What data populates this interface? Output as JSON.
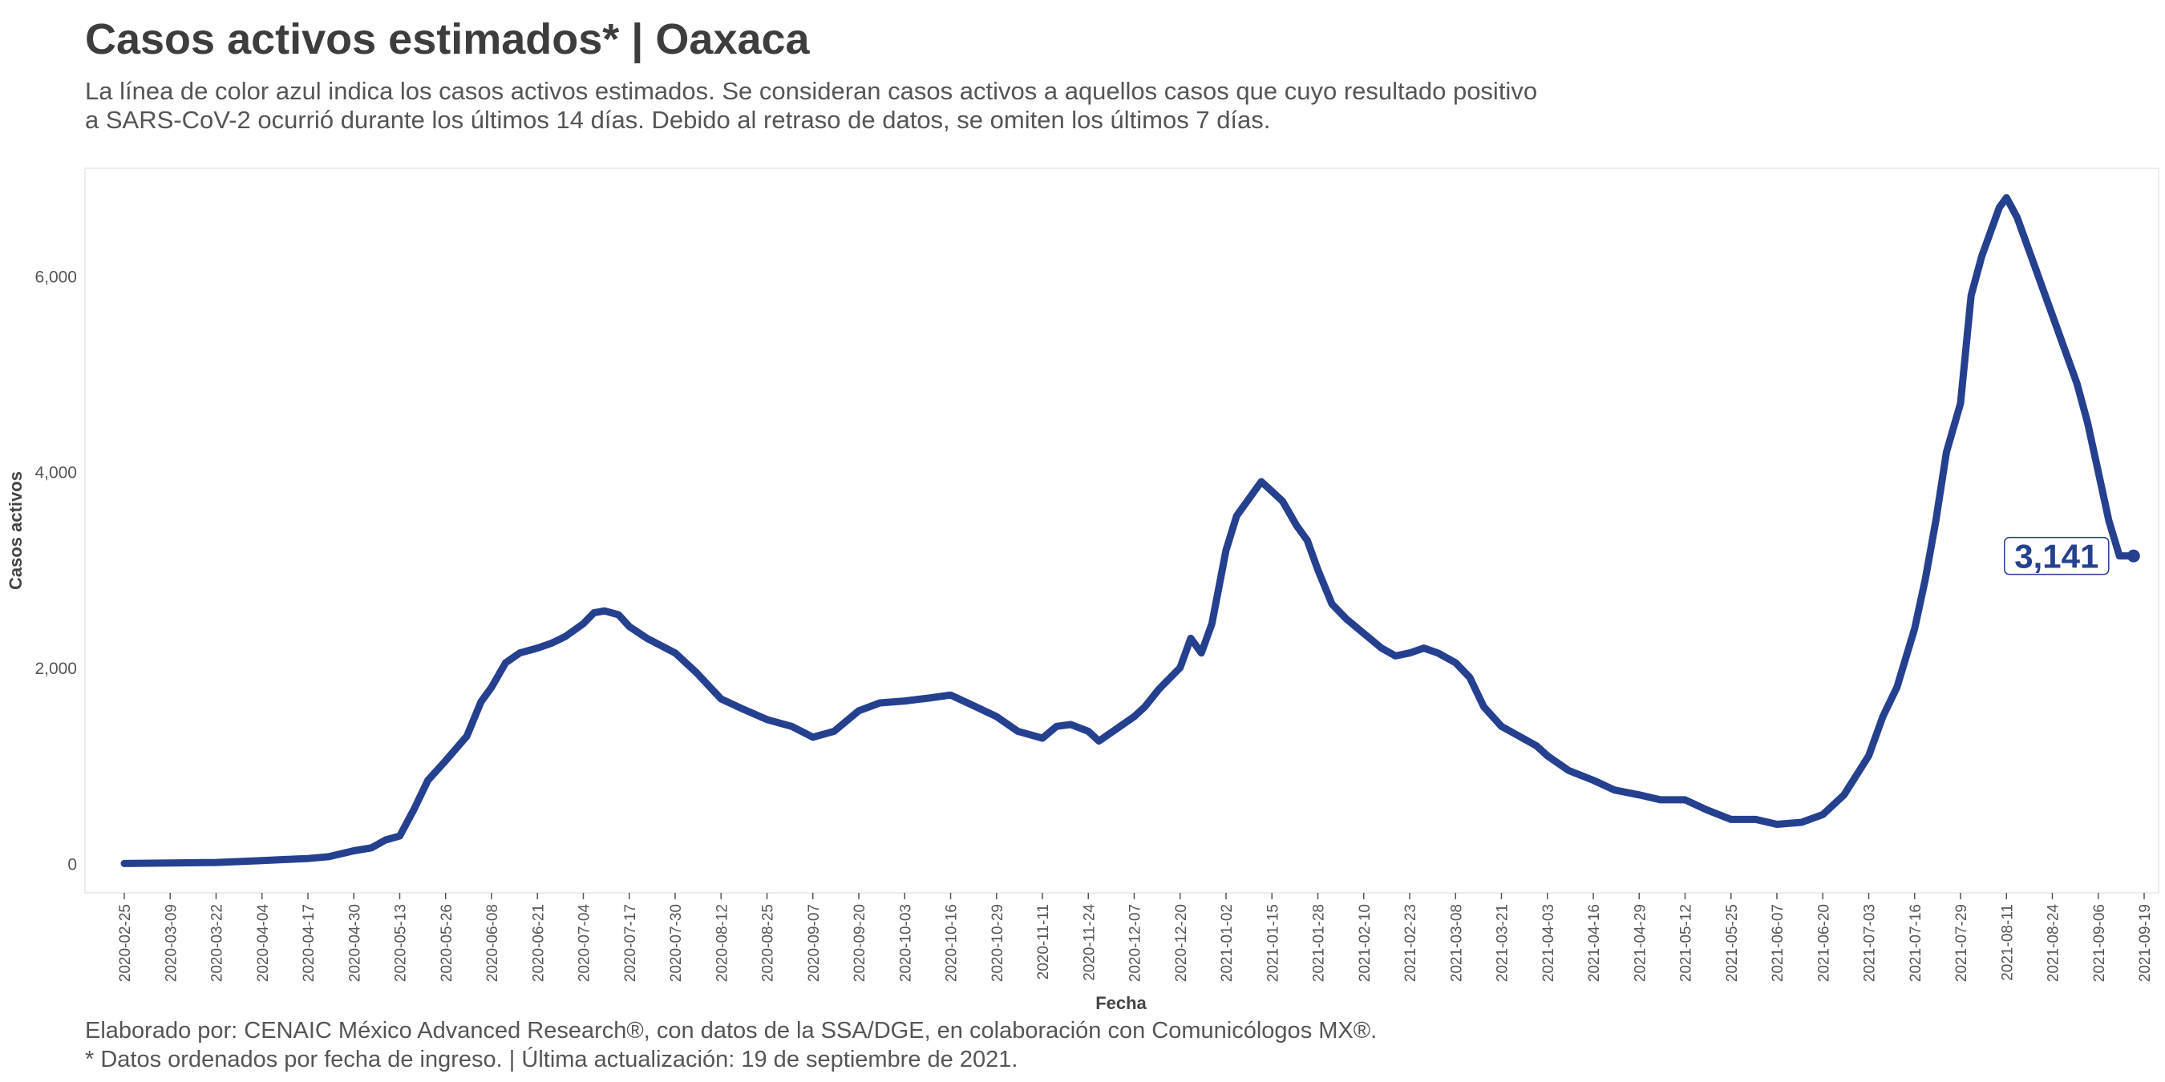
{
  "chart_data": {
    "type": "line",
    "title": "Casos activos estimados* | Oaxaca",
    "subtitle_lines": [
      "La línea de color azul indica los casos activos estimados. Se consideran casos activos a aquellos casos que cuyo resultado positivo",
      "a SARS-CoV-2 ocurrió durante los últimos 14 días. Debido al retraso de datos, se omiten los últimos 7 días."
    ],
    "xlabel": "Fecha",
    "ylabel": "Casos activos",
    "x_ticks": [
      "2020-02-25",
      "2020-03-09",
      "2020-03-22",
      "2020-04-04",
      "2020-04-17",
      "2020-04-30",
      "2020-05-13",
      "2020-05-26",
      "2020-06-08",
      "2020-06-21",
      "2020-07-04",
      "2020-07-17",
      "2020-07-30",
      "2020-08-12",
      "2020-08-25",
      "2020-09-07",
      "2020-09-20",
      "2020-10-03",
      "2020-10-16",
      "2020-10-29",
      "2020-11-11",
      "2020-11-24",
      "2020-12-07",
      "2020-12-20",
      "2021-01-02",
      "2021-01-15",
      "2021-01-28",
      "2021-02-10",
      "2021-02-23",
      "2021-03-08",
      "2021-03-21",
      "2021-04-03",
      "2021-04-16",
      "2021-04-29",
      "2021-05-12",
      "2021-05-25",
      "2021-06-07",
      "2021-06-20",
      "2021-07-03",
      "2021-07-16",
      "2021-07-29",
      "2021-08-11",
      "2021-08-24",
      "2021-09-06",
      "2021-09-19"
    ],
    "y_ticks": [
      0,
      2000,
      4000,
      6000
    ],
    "y_tick_labels": [
      "0",
      "2,000",
      "4,000",
      "6,000"
    ],
    "ylim": [
      -300,
      7100
    ],
    "grid": false,
    "series": [
      {
        "color": "#25408f",
        "x": [
          "2020-02-25",
          "2020-03-09",
          "2020-03-22",
          "2020-04-04",
          "2020-04-10",
          "2020-04-17",
          "2020-04-23",
          "2020-04-30",
          "2020-05-05",
          "2020-05-09",
          "2020-05-13",
          "2020-05-17",
          "2020-05-21",
          "2020-05-26",
          "2020-06-01",
          "2020-06-05",
          "2020-06-08",
          "2020-06-12",
          "2020-06-16",
          "2020-06-21",
          "2020-06-25",
          "2020-06-29",
          "2020-07-04",
          "2020-07-07",
          "2020-07-10",
          "2020-07-14",
          "2020-07-17",
          "2020-07-22",
          "2020-07-30",
          "2020-08-05",
          "2020-08-12",
          "2020-08-18",
          "2020-08-25",
          "2020-09-01",
          "2020-09-07",
          "2020-09-13",
          "2020-09-20",
          "2020-09-26",
          "2020-10-03",
          "2020-10-10",
          "2020-10-16",
          "2020-10-22",
          "2020-10-29",
          "2020-11-04",
          "2020-11-11",
          "2020-11-15",
          "2020-11-19",
          "2020-11-24",
          "2020-11-27",
          "2020-12-01",
          "2020-12-07",
          "2020-12-10",
          "2020-12-14",
          "2020-12-20",
          "2020-12-23",
          "2020-12-26",
          "2020-12-29",
          "2021-01-02",
          "2021-01-05",
          "2021-01-09",
          "2021-01-12",
          "2021-01-15",
          "2021-01-18",
          "2021-01-22",
          "2021-01-25",
          "2021-01-28",
          "2021-02-01",
          "2021-02-05",
          "2021-02-10",
          "2021-02-15",
          "2021-02-19",
          "2021-02-23",
          "2021-02-27",
          "2021-03-03",
          "2021-03-08",
          "2021-03-12",
          "2021-03-16",
          "2021-03-21",
          "2021-03-26",
          "2021-03-31",
          "2021-04-03",
          "2021-04-09",
          "2021-04-16",
          "2021-04-22",
          "2021-04-29",
          "2021-05-05",
          "2021-05-12",
          "2021-05-18",
          "2021-05-25",
          "2021-06-01",
          "2021-06-07",
          "2021-06-14",
          "2021-06-20",
          "2021-06-26",
          "2021-07-03",
          "2021-07-07",
          "2021-07-11",
          "2021-07-16",
          "2021-07-19",
          "2021-07-22",
          "2021-07-25",
          "2021-07-29",
          "2021-08-01",
          "2021-08-04",
          "2021-08-07",
          "2021-08-09",
          "2021-08-11",
          "2021-08-14",
          "2021-08-18",
          "2021-08-21",
          "2021-08-24",
          "2021-08-28",
          "2021-08-31",
          "2021-09-03",
          "2021-09-06",
          "2021-09-09",
          "2021-09-12",
          "2021-09-16"
        ],
        "values": [
          0,
          5,
          10,
          30,
          40,
          50,
          70,
          130,
          160,
          240,
          280,
          550,
          850,
          1050,
          1300,
          1650,
          1800,
          2050,
          2150,
          2200,
          2250,
          2320,
          2450,
          2560,
          2580,
          2540,
          2420,
          2300,
          2150,
          1950,
          1680,
          1580,
          1470,
          1400,
          1290,
          1350,
          1560,
          1640,
          1660,
          1690,
          1720,
          1620,
          1500,
          1350,
          1280,
          1400,
          1420,
          1350,
          1250,
          1350,
          1500,
          1600,
          1780,
          2000,
          2300,
          2150,
          2450,
          3200,
          3550,
          3750,
          3900,
          3800,
          3700,
          3450,
          3300,
          3000,
          2650,
          2500,
          2350,
          2200,
          2120,
          2150,
          2200,
          2150,
          2050,
          1900,
          1600,
          1400,
          1300,
          1200,
          1100,
          950,
          850,
          750,
          700,
          650,
          650,
          550,
          450,
          450,
          400,
          420,
          500,
          700,
          1100,
          1500,
          1800,
          2400,
          2900,
          3500,
          4200,
          4700,
          5800,
          6200,
          6500,
          6700,
          6800,
          6600,
          6200,
          5900,
          5600,
          5200,
          4900,
          4500,
          4000,
          3500,
          3141,
          3141
        ],
        "end_label": "3,141"
      }
    ],
    "caption_lines": [
      "Elaborado por: CENAIC México Advanced Research®, con datos de la SSA/DGE, en colaboración con Comunicólogos MX®.",
      "* Datos ordenados por fecha de ingreso. | Última actualización: 19 de septiembre de 2021."
    ]
  }
}
